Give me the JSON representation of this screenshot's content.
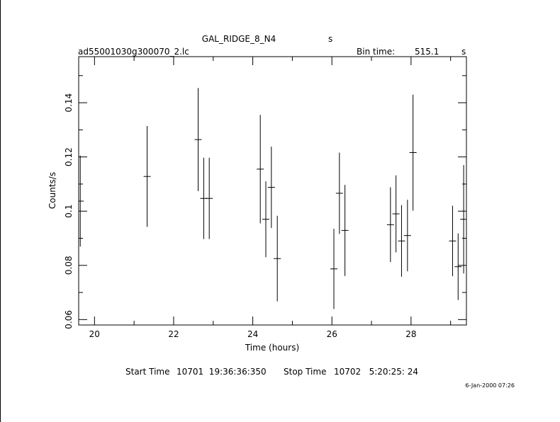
{
  "header": {
    "object": "GAL_RIDGE_8_N4",
    "object_unit": "s",
    "file": "ad55001030g300070_2.lc",
    "bin_label": "Bin time:",
    "bin_value": "515.1",
    "bin_unit": "s"
  },
  "footer": {
    "start_label": "Start Time",
    "start_value": "10701  19:36:36:350",
    "stop_label": "Stop Time",
    "stop_value": "10702   5:20:25: 24",
    "date_stamp": "6-Jan-2000 07:26"
  },
  "chart_data": {
    "type": "scatter",
    "xlabel": "Time (hours)",
    "ylabel": "Counts/s",
    "xlim": [
      19.6,
      29.4
    ],
    "ylim": [
      0.058,
      0.157
    ],
    "x_ticks": [
      20,
      22,
      24,
      26,
      28
    ],
    "x_tick_labels": [
      "20",
      "22",
      "24",
      "26",
      "28"
    ],
    "y_ticks": [
      0.06,
      0.08,
      0.1,
      0.12,
      0.14
    ],
    "y_tick_labels": [
      "0.06",
      "0.08",
      "0.1",
      "0.12",
      "0.14"
    ],
    "points": [
      {
        "x": 19.64,
        "y": 0.1037,
        "err": 0.0168
      },
      {
        "x": 21.33,
        "y": 0.1128,
        "err": 0.0186
      },
      {
        "x": 22.62,
        "y": 0.1264,
        "err": 0.019
      },
      {
        "x": 22.76,
        "y": 0.1047,
        "err": 0.015
      },
      {
        "x": 22.9,
        "y": 0.1047,
        "err": 0.015
      },
      {
        "x": 24.19,
        "y": 0.1155,
        "err": 0.02
      },
      {
        "x": 24.33,
        "y": 0.097,
        "err": 0.014
      },
      {
        "x": 24.47,
        "y": 0.1088,
        "err": 0.015
      },
      {
        "x": 24.62,
        "y": 0.0825,
        "err": 0.0158
      },
      {
        "x": 26.05,
        "y": 0.0787,
        "err": 0.0148
      },
      {
        "x": 26.19,
        "y": 0.1066,
        "err": 0.015
      },
      {
        "x": 26.33,
        "y": 0.0929,
        "err": 0.0168
      },
      {
        "x": 27.48,
        "y": 0.095,
        "err": 0.0138
      },
      {
        "x": 27.62,
        "y": 0.099,
        "err": 0.0142
      },
      {
        "x": 27.76,
        "y": 0.089,
        "err": 0.0132
      },
      {
        "x": 27.91,
        "y": 0.091,
        "err": 0.0132
      },
      {
        "x": 28.05,
        "y": 0.1216,
        "err": 0.0214
      },
      {
        "x": 29.05,
        "y": 0.089,
        "err": 0.013
      },
      {
        "x": 29.19,
        "y": 0.0795,
        "err": 0.0123
      },
      {
        "x": 29.33,
        "y": 0.097,
        "err": 0.02
      }
    ]
  }
}
